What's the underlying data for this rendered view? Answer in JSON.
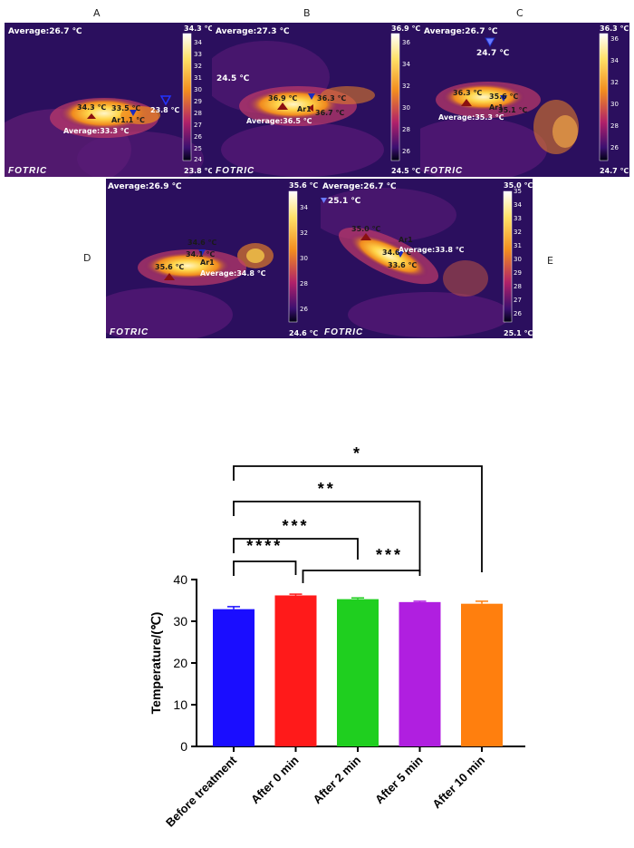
{
  "panels": [
    {
      "label": "A",
      "average": "Average:26.7 ℃",
      "max_label": "34.3 ℃",
      "min_label": "23.8 ℃",
      "scale_ticks": [
        "34",
        "33",
        "32",
        "31",
        "30",
        "29",
        "28",
        "27",
        "26",
        "25",
        "24"
      ],
      "annotations": [
        "34.3 ℃",
        "33.5 ℃",
        "Ar1.1 ℃",
        "23.8 ℃",
        "Average:33.3 ℃"
      ],
      "brand": "FOTRIC"
    },
    {
      "label": "B",
      "average": "Average:27.3 ℃",
      "max_label": "36.9 ℃",
      "min_label": "24.5 ℃",
      "scale_ticks": [
        "36",
        "34",
        "32",
        "30",
        "28",
        "26"
      ],
      "annotations": [
        "24.5 ℃",
        "36.9 ℃",
        "36.3 ℃",
        "Ar1",
        "36.7 ℃",
        "Average:36.5 ℃"
      ],
      "brand": "FOTRIC"
    },
    {
      "label": "C",
      "average": "Average:26.7 ℃",
      "max_label": "36.3 ℃",
      "min_label": "24.7 ℃",
      "scale_ticks": [
        "36",
        "34",
        "32",
        "30",
        "28",
        "26"
      ],
      "annotations": [
        "24.7 ℃",
        "36.3 ℃",
        "35.6 ℃",
        "Ar1",
        "35.1 ℃",
        "Average:35.3 ℃"
      ],
      "brand": "FOTRIC"
    },
    {
      "label": "D",
      "average": "Average:26.9 ℃",
      "max_label": "35.6 ℃",
      "min_label": "24.6 ℃",
      "scale_ticks": [
        "34",
        "32",
        "30",
        "28",
        "26"
      ],
      "annotations": [
        "34.6 ℃",
        "34.1 ℃",
        "Ar1",
        "35.6 ℃",
        "Average:34.8 ℃"
      ],
      "brand": "FOTRIC"
    },
    {
      "label": "E",
      "average": "Average:26.7 ℃",
      "max_label": "35.0 ℃",
      "min_label": "25.1 ℃",
      "scale_ticks": [
        "35",
        "34",
        "33",
        "32",
        "31",
        "30",
        "29",
        "28",
        "27",
        "26"
      ],
      "annotations": [
        "25.1 ℃",
        "35.0 ℃",
        "Ar1",
        "34.0 ℃",
        "Average:33.8 ℃",
        "33.6 ℃"
      ],
      "brand": "FOTRIC"
    }
  ],
  "chart_data": {
    "type": "bar",
    "categories": [
      "Before treatment",
      "After 0 min",
      "After 2 min",
      "After 5 min",
      "After 10 min"
    ],
    "values": [
      32.9,
      36.2,
      35.3,
      34.6,
      34.2
    ],
    "errors": [
      0.6,
      0.3,
      0.3,
      0.2,
      0.6
    ],
    "colors": [
      "#1a0dff",
      "#ff1a1a",
      "#1fcf1f",
      "#b01fe0",
      "#ff7f0e"
    ],
    "title": "",
    "xlabel": "",
    "ylabel": "Temperature/(℃)",
    "ylim": [
      0,
      40
    ],
    "yticks": [
      0,
      10,
      20,
      30,
      40
    ],
    "significance": [
      {
        "from": "Before treatment",
        "to": "After 0 min",
        "label": "****"
      },
      {
        "from": "After 0 min",
        "to": "After 5 min",
        "label": "***"
      },
      {
        "from": "Before treatment",
        "to": "After 2 min",
        "label": "***"
      },
      {
        "from": "Before treatment",
        "to": "After 5 min",
        "label": "**"
      },
      {
        "from": "Before treatment",
        "to": "After 10 min",
        "label": "*"
      }
    ]
  }
}
